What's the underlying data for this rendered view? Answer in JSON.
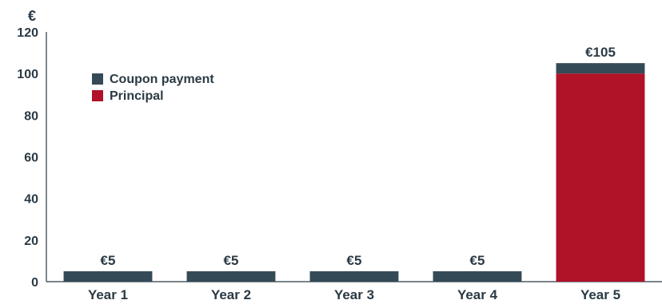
{
  "chart_data": {
    "type": "bar",
    "stacked": true,
    "title": "",
    "xlabel": "",
    "ylabel": "€",
    "categories": [
      "Year 1",
      "Year 2",
      "Year 3",
      "Year 4",
      "Year 5"
    ],
    "ylim": [
      0,
      120
    ],
    "yticks": [
      0,
      20,
      40,
      60,
      80,
      100,
      120
    ],
    "grid": false,
    "legend_position": "top-left",
    "series": [
      {
        "name": "Principal",
        "color": "#b01228",
        "values": [
          0,
          0,
          0,
          0,
          100
        ]
      },
      {
        "name": "Coupon payment",
        "color": "#354a57",
        "values": [
          5,
          5,
          5,
          5,
          5
        ]
      }
    ],
    "legend": [
      {
        "name": "Coupon payment",
        "color": "#354a57"
      },
      {
        "name": "Principal",
        "color": "#b01228"
      }
    ],
    "data_labels": [
      "€5",
      "€5",
      "€5",
      "€5",
      "€105"
    ]
  }
}
